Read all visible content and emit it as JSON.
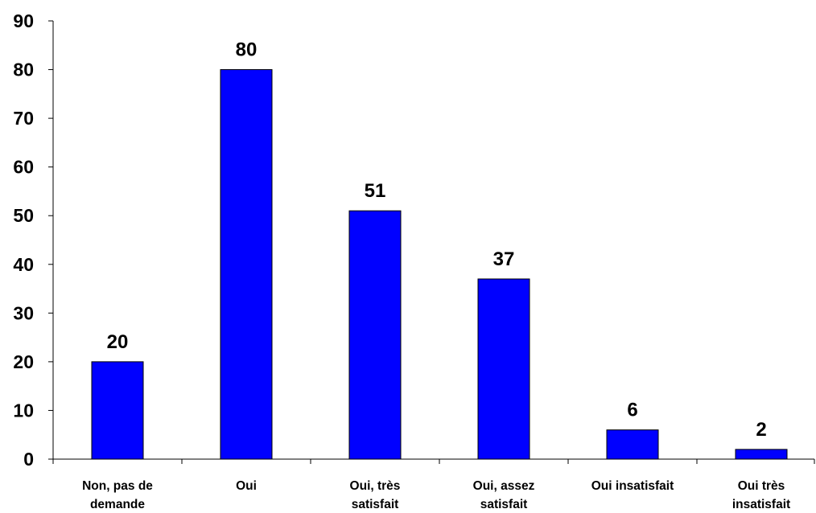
{
  "chart_data": {
    "type": "bar",
    "categories": [
      [
        "Non, pas de",
        "demande"
      ],
      [
        "Oui"
      ],
      [
        "Oui, très",
        "satisfait"
      ],
      [
        "Oui, assez",
        "satisfait"
      ],
      [
        "Oui insatisfait"
      ],
      [
        "Oui très",
        "insatisfait"
      ]
    ],
    "values": [
      20,
      80,
      51,
      37,
      6,
      2
    ],
    "ylim": [
      0,
      90
    ],
    "yticks": [
      0,
      10,
      20,
      30,
      40,
      50,
      60,
      70,
      80,
      90
    ],
    "bar_color": "#0000FF",
    "bar_outline": "#000000",
    "grid": false,
    "data_labels": true
  }
}
